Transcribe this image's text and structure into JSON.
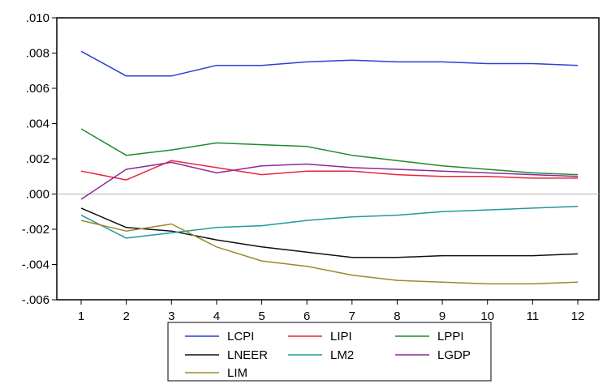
{
  "chart_data": {
    "type": "line",
    "title": "",
    "xlabel": "",
    "ylabel": "",
    "x": [
      1,
      2,
      3,
      4,
      5,
      6,
      7,
      8,
      9,
      10,
      11,
      12
    ],
    "ylim": [
      -0.006,
      0.01
    ],
    "yticks": [
      0.01,
      0.008,
      0.006,
      0.004,
      0.002,
      0.0,
      -0.002,
      -0.004,
      -0.006
    ],
    "ytick_labels": [
      ".010",
      ".008",
      ".006",
      ".004",
      ".002",
      ".000",
      "-.002",
      "-.004",
      "-.006"
    ],
    "xtick_labels": [
      "1",
      "2",
      "3",
      "4",
      "5",
      "6",
      "7",
      "8",
      "9",
      "10",
      "11",
      "12"
    ],
    "zero_line": true,
    "legend_position": "bottom",
    "series": [
      {
        "name": "LCPI",
        "color": "#2b3fd6",
        "values": [
          0.0081,
          0.0067,
          0.0067,
          0.0073,
          0.0073,
          0.0075,
          0.0076,
          0.0075,
          0.0075,
          0.0074,
          0.0074,
          0.0073
        ]
      },
      {
        "name": "LIPI",
        "color": "#e8253c",
        "values": [
          0.0013,
          0.0008,
          0.0019,
          0.0015,
          0.0011,
          0.0013,
          0.0013,
          0.0011,
          0.001,
          0.001,
          0.0009,
          0.0009
        ]
      },
      {
        "name": "LPPI",
        "color": "#1f8a2e",
        "values": [
          0.0037,
          0.0022,
          0.0025,
          0.0029,
          0.0028,
          0.0027,
          0.0022,
          0.0019,
          0.0016,
          0.0014,
          0.0012,
          0.0011
        ]
      },
      {
        "name": "LNEER",
        "color": "#111111",
        "values": [
          -0.0008,
          -0.0019,
          -0.0021,
          -0.0026,
          -0.003,
          -0.0033,
          -0.0036,
          -0.0036,
          -0.0035,
          -0.0035,
          -0.0035,
          -0.0034
        ]
      },
      {
        "name": "LM2",
        "color": "#1f9a9a",
        "values": [
          -0.0012,
          -0.0025,
          -0.0022,
          -0.0019,
          -0.0018,
          -0.0015,
          -0.0013,
          -0.0012,
          -0.001,
          -0.0009,
          -0.0008,
          -0.0007
        ]
      },
      {
        "name": "LGDP",
        "color": "#8a2a9a",
        "values": [
          -0.0003,
          0.0014,
          0.0018,
          0.0012,
          0.0016,
          0.0017,
          0.0015,
          0.0014,
          0.0013,
          0.0012,
          0.0011,
          0.001
        ]
      },
      {
        "name": "LIM",
        "color": "#9a8a2a",
        "values": [
          -0.0015,
          -0.0021,
          -0.0017,
          -0.003,
          -0.0038,
          -0.0041,
          -0.0046,
          -0.0049,
          -0.005,
          -0.0051,
          -0.0051,
          -0.005
        ]
      }
    ]
  }
}
